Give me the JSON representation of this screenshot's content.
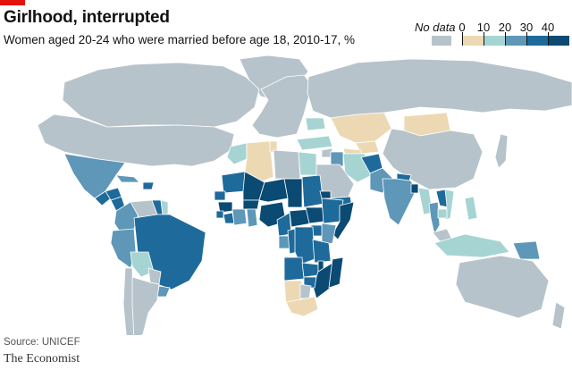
{
  "header": {
    "title": "Girlhood, interrupted",
    "subtitle": "Women aged 20-24 who were married before age 18, 2010-17, %"
  },
  "legend": {
    "no_data_label": "No data",
    "ticks": [
      "0",
      "10",
      "20",
      "30",
      "40"
    ],
    "colors": {
      "no_data": "#b7c3cb",
      "bin_0_10": "#ecd9b3",
      "bin_10_20": "#a6d4d2",
      "bin_20_30": "#5e97b8",
      "bin_30_40": "#1e6a9b",
      "bin_40_plus": "#0a4a73",
      "ocean": "#ffffff",
      "border": "#ffffff",
      "brand_red": "#e3120b"
    }
  },
  "map_values": {
    "Mexico": "20-30",
    "Guatemala": "30-40",
    "Honduras": "30-40",
    "Nicaragua": "30-40",
    "Dominican Republic": "30-40",
    "Cuba": "20-30",
    "Colombia": "20-30",
    "Venezuela": "no data",
    "Guyana": "30-40",
    "Suriname": "10-20",
    "Brazil": "30-40",
    "Peru": "20-30",
    "Bolivia": "10-20",
    "Paraguay": "no data",
    "Uruguay": "20-30",
    "Argentina": "no data",
    "Chile": "no data",
    "Morocco": "10-20",
    "Algeria": "0-10",
    "Tunisia": "0-10",
    "Egypt": "10-20",
    "Libya": "no data",
    "Mauritania": "30-40",
    "Mali": "40+",
    "Niger": "40+",
    "Chad": "40+",
    "Sudan": "30-40",
    "Senegal": "30-40",
    "Guinea": "40+",
    "Sierra Leone": "30-40",
    "Liberia": "30-40",
    "Cote d'Ivoire": "20-30",
    "Ghana": "20-30",
    "Burkina Faso": "40+",
    "Nigeria": "40+",
    "Cameroon": "30-40",
    "Central African Republic": "40+",
    "South Sudan": "40+",
    "Ethiopia": "30-40",
    "Eritrea": "40+",
    "Somalia": "40+",
    "Kenya": "20-30",
    "Uganda": "30-40",
    "Gabon": "20-30",
    "Congo": "30-40",
    "DR Congo": "30-40",
    "Angola": "30-40",
    "Tanzania": "30-40",
    "Zambia": "30-40",
    "Malawi": "40+",
    "Mozambique": "40+",
    "Zimbabwe": "30-40",
    "Madagascar": "40+",
    "Namibia": "0-10",
    "Botswana": "no data",
    "South Africa": "0-10",
    "Turkey": "10-20",
    "Iraq": "20-30",
    "Iran": "10-20",
    "Syria": "no data",
    "Saudi Arabia": "no data",
    "Yemen": "30-40",
    "Afghanistan": "30-40",
    "Pakistan": "20-30",
    "India": "20-30",
    "Nepal": "30-40",
    "Bangladesh": "40+",
    "Myanmar": "10-20",
    "Thailand": "20-30",
    "Laos": "30-40",
    "Vietnam": "10-20",
    "Cambodia": "10-20",
    "Kazakhstan": "0-10",
    "Uzbekistan": "0-10",
    "Turkmenistan": "0-10",
    "Mongolia": "0-10",
    "Ukraine": "10-20",
    "Philippines": "10-20",
    "Indonesia": "10-20",
    "Papua New Guinea": "20-30",
    "Russia": "no data",
    "China": "no data",
    "USA": "no data",
    "Canada": "no data",
    "Australia": "no data",
    "Greenland": "no data",
    "Europe": "no data",
    "Japan": "no data",
    "New Zealand": "no data",
    "Malaysia": "no data"
  },
  "footer": {
    "source": "Source: UNICEF",
    "brand": "The Economist"
  }
}
